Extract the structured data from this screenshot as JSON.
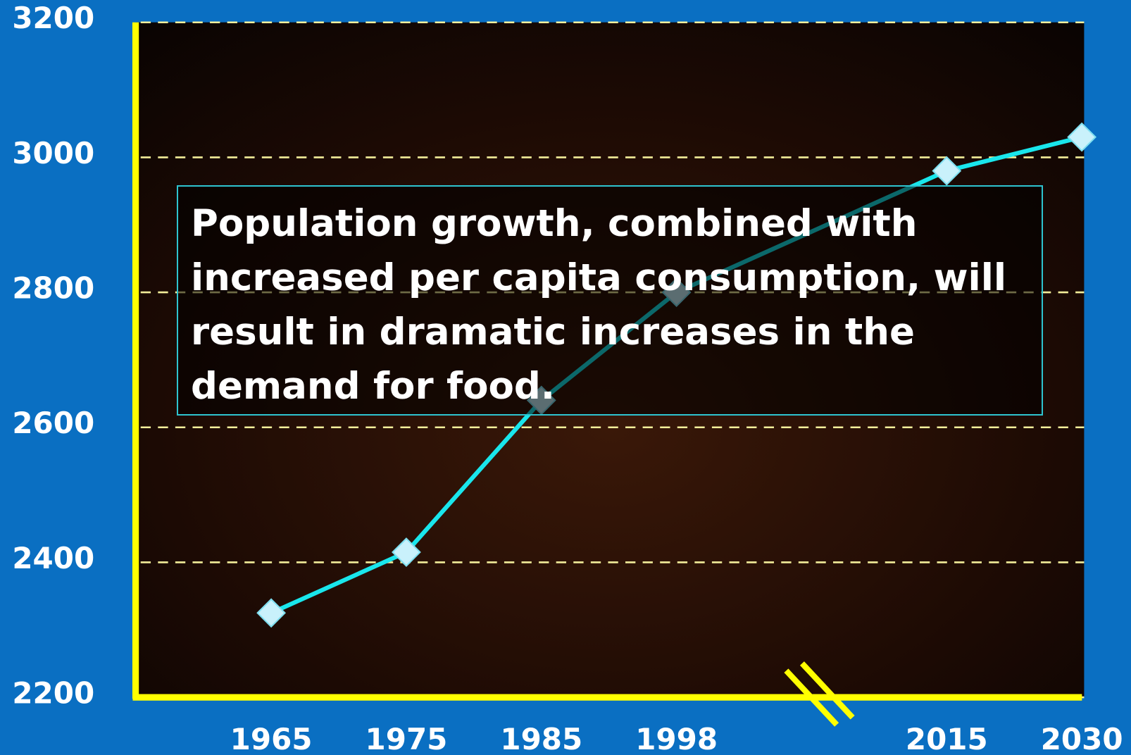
{
  "chart_data": {
    "type": "line",
    "categories": [
      "1965",
      "1975",
      "1985",
      "1998",
      "2015",
      "2030"
    ],
    "series": [
      {
        "name": null,
        "color": "#19e6ec",
        "values": [
          2325,
          2415,
          2640,
          2800,
          2980,
          3030
        ]
      }
    ],
    "ylim": [
      2200,
      3200
    ],
    "yticks": [
      2200,
      2400,
      2600,
      2800,
      3000,
      3200
    ],
    "grid": true,
    "annotation": "Population growth, combined with increased per capita consumption, will result in dramatic increases in the demand for food."
  }
}
